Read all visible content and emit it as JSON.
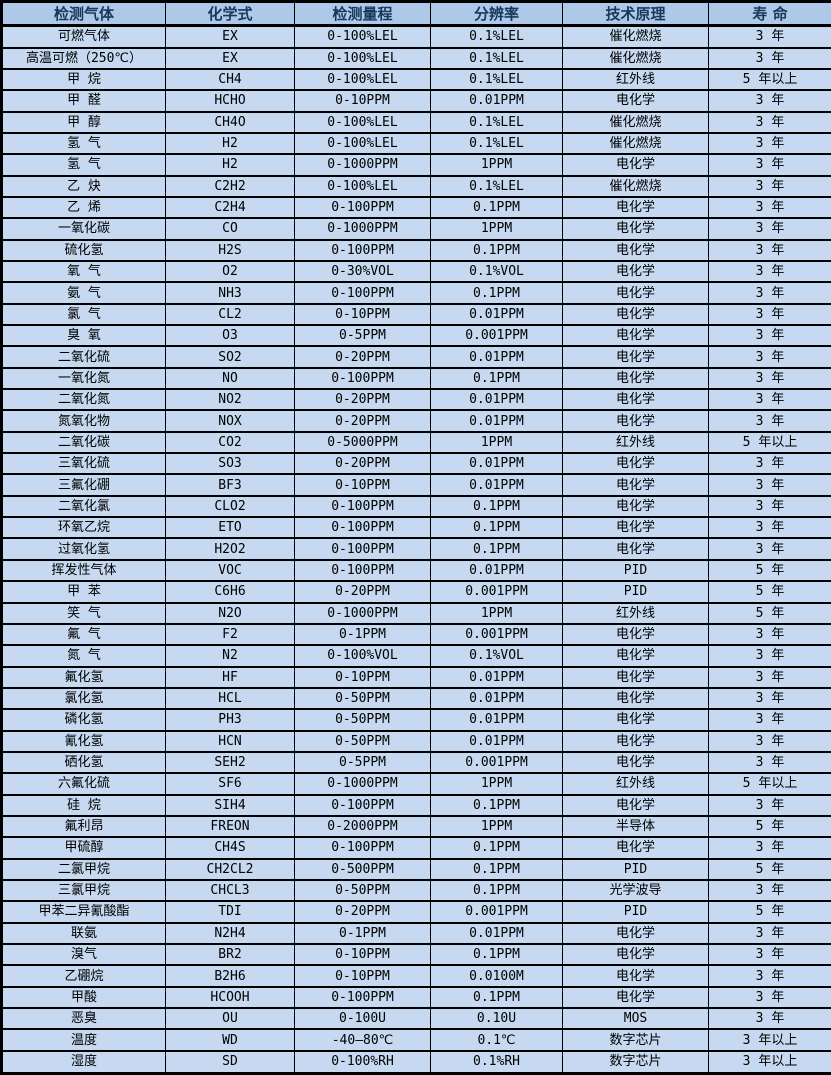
{
  "accent_colors": {
    "header_background": "#aec9e7",
    "row_background": "#c6d9f0",
    "header_text": "#17375e",
    "cell_text": "#000000",
    "border": "#000000"
  },
  "table": {
    "headers": [
      "检测气体",
      "化学式",
      "检测量程",
      "分辨率",
      "技术原理",
      "寿 命"
    ],
    "rows": [
      [
        "可燃气体",
        "EX",
        "0-100%LEL",
        "0.1%LEL",
        "催化燃烧",
        "3 年"
      ],
      [
        "高温可燃（250℃）",
        "EX",
        "0-100%LEL",
        "0.1%LEL",
        "催化燃烧",
        "3 年"
      ],
      [
        "甲 烷",
        "CH4",
        "0-100%LEL",
        "0.1%LEL",
        "红外线",
        "5 年以上"
      ],
      [
        "甲 醛",
        "HCHO",
        "0-10PPM",
        "0.01PPM",
        "电化学",
        "3 年"
      ],
      [
        "甲 醇",
        "CH4O",
        "0-100%LEL",
        "0.1%LEL",
        "催化燃烧",
        "3 年"
      ],
      [
        "氢 气",
        "H2",
        "0-100%LEL",
        "0.1%LEL",
        "催化燃烧",
        "3 年"
      ],
      [
        "氢 气",
        "H2",
        "0-1000PPM",
        "1PPM",
        "电化学",
        "3 年"
      ],
      [
        "乙 炔",
        "C2H2",
        "0-100%LEL",
        "0.1%LEL",
        "催化燃烧",
        "3 年"
      ],
      [
        "乙 烯",
        "C2H4",
        "0-100PPM",
        "0.1PPM",
        "电化学",
        "3 年"
      ],
      [
        "一氧化碳",
        "CO",
        "0-1000PPM",
        "1PPM",
        "电化学",
        "3 年"
      ],
      [
        "硫化氢",
        "H2S",
        "0-100PPM",
        "0.1PPM",
        "电化学",
        "3 年"
      ],
      [
        "氧 气",
        "O2",
        "0-30%VOL",
        "0.1%VOL",
        "电化学",
        "3 年"
      ],
      [
        "氨 气",
        "NH3",
        "0-100PPM",
        "0.1PPM",
        "电化学",
        "3 年"
      ],
      [
        "氯 气",
        "CL2",
        "0-10PPM",
        "0.01PPM",
        "电化学",
        "3 年"
      ],
      [
        "臭 氧",
        "O3",
        "0-5PPM",
        "0.001PPM",
        "电化学",
        "3 年"
      ],
      [
        "二氧化硫",
        "SO2",
        "0-20PPM",
        "0.01PPM",
        "电化学",
        "3 年"
      ],
      [
        "一氧化氮",
        "NO",
        "0-100PPM",
        "0.1PPM",
        "电化学",
        "3 年"
      ],
      [
        "二氧化氮",
        "NO2",
        "0-20PPM",
        "0.01PPM",
        "电化学",
        "3 年"
      ],
      [
        "氮氧化物",
        "NOX",
        "0-20PPM",
        "0.01PPM",
        "电化学",
        "3 年"
      ],
      [
        "二氧化碳",
        "CO2",
        "0-5000PPM",
        "1PPM",
        "红外线",
        "5 年以上"
      ],
      [
        "三氧化硫",
        "SO3",
        "0-20PPM",
        "0.01PPM",
        "电化学",
        "3 年"
      ],
      [
        "三氟化硼",
        "BF3",
        "0-10PPM",
        "0.01PPM",
        "电化学",
        "3 年"
      ],
      [
        "二氧化氯",
        "CLO2",
        "0-100PPM",
        "0.1PPM",
        "电化学",
        "3 年"
      ],
      [
        "环氧乙烷",
        "ETO",
        "0-100PPM",
        "0.1PPM",
        "电化学",
        "3 年"
      ],
      [
        "过氧化氢",
        "H2O2",
        "0-100PPM",
        "0.1PPM",
        "电化学",
        "3 年"
      ],
      [
        "挥发性气体",
        "VOC",
        "0-100PPM",
        "0.01PPM",
        "PID",
        "5 年"
      ],
      [
        "甲 苯",
        "C6H6",
        "0-20PPM",
        "0.001PPM",
        "PID",
        "5 年"
      ],
      [
        "笑 气",
        "N2O",
        "0-1000PPM",
        "1PPM",
        "红外线",
        "5 年"
      ],
      [
        "氟 气",
        "F2",
        "0-1PPM",
        "0.001PPM",
        "电化学",
        "3 年"
      ],
      [
        "氮 气",
        "N2",
        "0-100%VOL",
        "0.1%VOL",
        "电化学",
        "3 年"
      ],
      [
        "氟化氢",
        "HF",
        "0-10PPM",
        "0.01PPM",
        "电化学",
        "3 年"
      ],
      [
        "氯化氢",
        "HCL",
        "0-50PPM",
        "0.01PPM",
        "电化学",
        "3 年"
      ],
      [
        "磷化氢",
        "PH3",
        "0-50PPM",
        "0.01PPM",
        "电化学",
        "3 年"
      ],
      [
        "氰化氢",
        "HCN",
        "0-50PPM",
        "0.01PPM",
        "电化学",
        "3 年"
      ],
      [
        "硒化氢",
        "SEH2",
        "0-5PPM",
        "0.001PPM",
        "电化学",
        "3 年"
      ],
      [
        "六氟化硫",
        "SF6",
        "0-1000PPM",
        "1PPM",
        "红外线",
        "5 年以上"
      ],
      [
        "硅 烷",
        "SIH4",
        "0-100PPM",
        "0.1PPM",
        "电化学",
        "3 年"
      ],
      [
        "氟利昂",
        "FREON",
        "0-2000PPM",
        "1PPM",
        "半导体",
        "5 年"
      ],
      [
        "甲硫醇",
        "CH4S",
        "0-100PPM",
        "0.1PPM",
        "电化学",
        "3 年"
      ],
      [
        "二氯甲烷",
        "CH2CL2",
        "0-500PPM",
        "0.1PPM",
        "PID",
        "5 年"
      ],
      [
        "三氯甲烷",
        "CHCL3",
        "0-50PPM",
        "0.1PPM",
        "光学波导",
        "3 年"
      ],
      [
        "甲苯二异氰酸酯",
        "TDI",
        "0-20PPM",
        "0.001PPM",
        "PID",
        "5 年"
      ],
      [
        "联氨",
        "N2H4",
        "0-1PPM",
        "0.01PPM",
        "电化学",
        "3 年"
      ],
      [
        "溴气",
        "BR2",
        "0-10PPM",
        "0.1PPM",
        "电化学",
        "3 年"
      ],
      [
        "乙硼烷",
        "B2H6",
        "0-10PPM",
        "0.0100M",
        "电化学",
        "3 年"
      ],
      [
        "甲酸",
        "HCOOH",
        "0-100PPM",
        "0.1PPM",
        "电化学",
        "3 年"
      ],
      [
        "恶臭",
        "OU",
        "0-100U",
        "0.10U",
        "MOS",
        "3 年"
      ],
      [
        "温度",
        "WD",
        "-40—80℃",
        "0.1℃",
        "数字芯片",
        "3 年以上"
      ],
      [
        "湿度",
        "SD",
        "0-100%RH",
        "0.1%RH",
        "数字芯片",
        "3 年以上"
      ]
    ]
  }
}
